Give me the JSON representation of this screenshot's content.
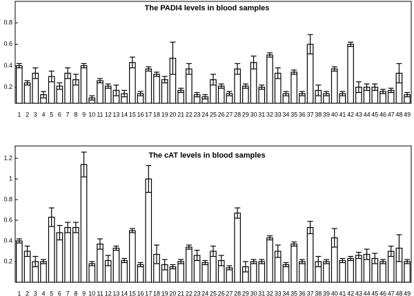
{
  "chart_data": [
    {
      "type": "bar",
      "title": "The PADI4 levels in blood samples",
      "categories": [
        "1",
        "2",
        "3",
        "4",
        "5",
        "6",
        "7",
        "8",
        "9",
        "10",
        "11",
        "12",
        "13",
        "14",
        "15",
        "16",
        "17",
        "18",
        "19",
        "20",
        "21",
        "22",
        "23",
        "24",
        "25",
        "26",
        "27",
        "28",
        "29",
        "30",
        "31",
        "32",
        "33",
        "34",
        "35",
        "36",
        "37",
        "38",
        "39",
        "40",
        "41",
        "42",
        "43",
        "44",
        "45",
        "46",
        "47",
        "48",
        "49"
      ],
      "values": [
        0.4,
        0.24,
        0.33,
        0.13,
        0.3,
        0.21,
        0.33,
        0.27,
        0.4,
        0.1,
        0.26,
        0.21,
        0.17,
        0.14,
        0.43,
        0.14,
        0.37,
        0.32,
        0.27,
        0.47,
        0.17,
        0.37,
        0.13,
        0.11,
        0.27,
        0.21,
        0.14,
        0.37,
        0.21,
        0.43,
        0.2,
        0.5,
        0.33,
        0.14,
        0.34,
        0.14,
        0.6,
        0.17,
        0.14,
        0.37,
        0.14,
        0.6,
        0.2,
        0.2,
        0.2,
        0.16,
        0.17,
        0.33,
        0.13
      ],
      "errors": [
        0.02,
        0.02,
        0.05,
        0.03,
        0.05,
        0.03,
        0.05,
        0.05,
        0.02,
        0.02,
        0.02,
        0.02,
        0.05,
        0.03,
        0.05,
        0.02,
        0.02,
        0.02,
        0.03,
        0.15,
        0.02,
        0.05,
        0.02,
        0.02,
        0.05,
        0.02,
        0.02,
        0.05,
        0.02,
        0.06,
        0.02,
        0.02,
        0.05,
        0.02,
        0.02,
        0.02,
        0.09,
        0.05,
        0.02,
        0.02,
        0.02,
        0.02,
        0.05,
        0.03,
        0.03,
        0.02,
        0.02,
        0.09,
        0.02
      ],
      "color": "#ffffff",
      "ylim": [
        0.05,
        1.0
      ],
      "yticks": [
        0.2,
        0.4,
        0.6,
        0.8
      ]
    },
    {
      "type": "bar",
      "title": "The cAT levels in blood samples",
      "categories": [
        "1",
        "2",
        "3",
        "4",
        "5",
        "6",
        "7",
        "8",
        "9",
        "10",
        "11",
        "12",
        "13",
        "14",
        "15",
        "16",
        "17",
        "18",
        "19",
        "20",
        "21",
        "22",
        "23",
        "24",
        "25",
        "26",
        "27",
        "28",
        "29",
        "30",
        "31",
        "32",
        "33",
        "34",
        "35",
        "36",
        "37",
        "38",
        "39",
        "40",
        "41",
        "42",
        "43",
        "44",
        "45",
        "46",
        "47",
        "48",
        "49"
      ],
      "values": [
        0.4,
        0.3,
        0.2,
        0.2,
        0.63,
        0.48,
        0.53,
        0.53,
        1.14,
        0.18,
        0.37,
        0.21,
        0.33,
        0.21,
        0.5,
        0.17,
        1.0,
        0.27,
        0.17,
        0.15,
        0.2,
        0.34,
        0.26,
        0.19,
        0.3,
        0.21,
        0.14,
        0.67,
        0.15,
        0.2,
        0.2,
        0.43,
        0.3,
        0.17,
        0.37,
        0.2,
        0.53,
        0.2,
        0.2,
        0.43,
        0.21,
        0.23,
        0.26,
        0.27,
        0.23,
        0.2,
        0.3,
        0.33,
        0.2
      ],
      "errors": [
        0.02,
        0.05,
        0.05,
        0.02,
        0.09,
        0.07,
        0.05,
        0.05,
        0.12,
        0.02,
        0.05,
        0.05,
        0.02,
        0.02,
        0.02,
        0.02,
        0.13,
        0.09,
        0.05,
        0.02,
        0.02,
        0.02,
        0.05,
        0.02,
        0.05,
        0.05,
        0.02,
        0.05,
        0.05,
        0.02,
        0.02,
        0.02,
        0.06,
        0.02,
        0.02,
        0.02,
        0.06,
        0.05,
        0.02,
        0.09,
        0.02,
        0.02,
        0.03,
        0.05,
        0.05,
        0.02,
        0.05,
        0.13,
        0.02
      ],
      "color": "#ffffff",
      "ylim": [
        0,
        1.32
      ],
      "yticks": [
        0.2,
        0.4,
        0.6,
        0.8,
        1,
        1.2
      ]
    }
  ]
}
